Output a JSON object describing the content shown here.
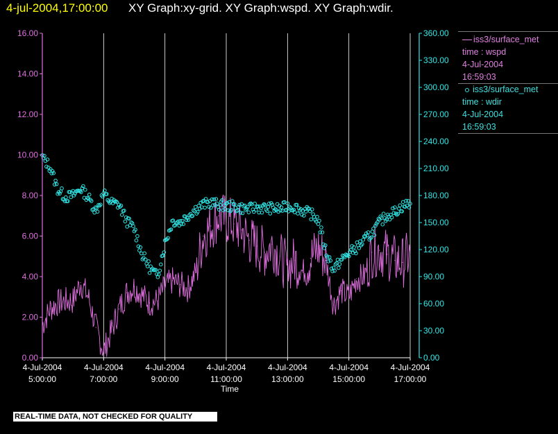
{
  "header": {
    "timestamp": "4-jul-2004,17:00:00",
    "titles": "XY Graph:xy-grid.  XY Graph:wspd.  XY Graph:wdir."
  },
  "legend": {
    "series1": {
      "line1": "iss3/surface_met",
      "line2": "time : wspd",
      "line3": "4-Jul-2004",
      "line4": "16:59:03"
    },
    "series2": {
      "line1": "iss3/surface_met",
      "line2": "time : wdir",
      "line3": "4-Jul-2004",
      "line4": "16:59:03"
    }
  },
  "quality_notice": "REAL-TIME DATA, NOT CHECKED FOR QUALITY",
  "colors": {
    "wspd": "#e070e0",
    "wdir": "#30e8e8",
    "grid": "#ffffff",
    "background": "#000000"
  },
  "chart_data": {
    "type": "line",
    "xlabel": "Time",
    "x_ticks": [
      {
        "date": "4-Jul-2004",
        "time": "5:00:00"
      },
      {
        "date": "4-Jul-2004",
        "time": "7:00:00"
      },
      {
        "date": "4-Jul-2004",
        "time": "9:00:00"
      },
      {
        "date": "4-Jul-2004",
        "time": "11:00:00"
      },
      {
        "date": "4-Jul-2004",
        "time": "13:00:00"
      },
      {
        "date": "4-Jul-2004",
        "time": "15:00:00"
      },
      {
        "date": "4-Jul-2004",
        "time": "17:00:00"
      }
    ],
    "xlim": [
      "2004-07-04 05:00",
      "2004-07-04 17:00"
    ],
    "y_left": {
      "lim": [
        0,
        16
      ],
      "ticks": [
        "0.00",
        "2.00",
        "4.00",
        "6.00",
        "8.00",
        "10.00",
        "12.00",
        "14.00",
        "16.00"
      ]
    },
    "y_right": {
      "lim": [
        0,
        360
      ],
      "ticks": [
        "0.00",
        "30.00",
        "60.00",
        "90.00",
        "120.00",
        "150.00",
        "180.00",
        "210.00",
        "240.00",
        "270.00",
        "300.00",
        "330.00",
        "360.00"
      ]
    },
    "grid": "vertical lines at major x ticks",
    "series": [
      {
        "name": "iss3/surface_met time : wspd",
        "axis": "left",
        "style": "line",
        "x": [
          "05:00",
          "05:15",
          "05:30",
          "05:45",
          "06:00",
          "06:15",
          "06:30",
          "06:45",
          "07:00",
          "07:15",
          "07:30",
          "07:45",
          "08:00",
          "08:15",
          "08:30",
          "08:45",
          "09:00",
          "09:15",
          "09:30",
          "09:45",
          "10:00",
          "10:15",
          "10:30",
          "10:45",
          "11:00",
          "11:15",
          "11:30",
          "11:45",
          "12:00",
          "12:15",
          "12:30",
          "12:45",
          "13:00",
          "13:15",
          "13:30",
          "13:45",
          "14:00",
          "14:15",
          "14:30",
          "14:45",
          "15:00",
          "15:15",
          "15:30",
          "15:45",
          "16:00",
          "16:15",
          "16:30",
          "16:45",
          "17:00"
        ],
        "y": [
          1.6,
          2.4,
          2.7,
          2.8,
          2.8,
          3.7,
          3.0,
          1.5,
          0.3,
          1.3,
          2.4,
          3.2,
          3.5,
          3.1,
          2.7,
          2.8,
          3.5,
          3.8,
          3.6,
          3.4,
          4.2,
          6.0,
          6.5,
          7.0,
          6.8,
          6.6,
          6.3,
          5.8,
          5.5,
          5.2,
          5.6,
          5.0,
          4.4,
          4.8,
          4.2,
          4.9,
          5.4,
          4.8,
          2.6,
          3.3,
          3.0,
          3.9,
          4.0,
          5.2,
          5.3,
          5.1,
          4.8,
          4.7,
          5.1
        ]
      },
      {
        "name": "iss3/surface_met time : wdir",
        "axis": "right",
        "style": "circles",
        "x": [
          "05:00",
          "05:15",
          "05:30",
          "05:45",
          "06:00",
          "06:15",
          "06:30",
          "06:45",
          "07:00",
          "07:15",
          "07:30",
          "07:45",
          "08:00",
          "08:15",
          "08:30",
          "08:45",
          "09:00",
          "09:15",
          "09:30",
          "09:45",
          "10:00",
          "10:15",
          "10:30",
          "10:45",
          "11:00",
          "11:15",
          "11:30",
          "11:45",
          "12:00",
          "12:15",
          "12:30",
          "12:45",
          "13:00",
          "13:15",
          "13:30",
          "13:45",
          "14:00",
          "14:15",
          "14:30",
          "14:45",
          "15:00",
          "15:15",
          "15:30",
          "15:45",
          "16:00",
          "16:15",
          "16:30",
          "16:45",
          "17:00"
        ],
        "y": [
          222,
          212,
          187,
          178,
          180,
          188,
          178,
          163,
          182,
          172,
          170,
          152,
          143,
          115,
          100,
          90,
          127,
          152,
          150,
          158,
          165,
          170,
          172,
          170,
          168,
          168,
          166,
          165,
          167,
          166,
          166,
          165,
          168,
          167,
          163,
          160,
          153,
          118,
          98,
          108,
          116,
          122,
          130,
          138,
          150,
          158,
          162,
          168,
          172
        ]
      }
    ]
  }
}
